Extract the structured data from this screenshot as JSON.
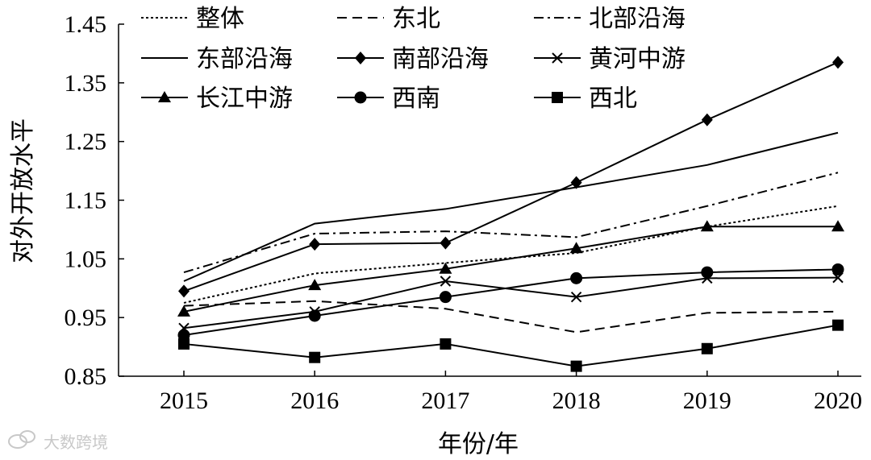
{
  "chart_data": {
    "type": "line",
    "title": "",
    "xlabel": "年份/年",
    "ylabel": "对外开放水平",
    "x": [
      "2015",
      "2016",
      "2017",
      "2018",
      "2019",
      "2020"
    ],
    "ylim": [
      0.85,
      1.45
    ],
    "yticks": [
      "0.85",
      "0.95",
      "1.05",
      "1.15",
      "1.25",
      "1.35",
      "1.45"
    ],
    "grid": false,
    "legend_position": "top",
    "series": [
      {
        "name": "整体",
        "line_style": "dotted",
        "marker": "none",
        "values": [
          0.975,
          1.025,
          1.043,
          1.06,
          1.105,
          1.14
        ]
      },
      {
        "name": "东北",
        "line_style": "dashed",
        "marker": "none",
        "values": [
          0.97,
          0.978,
          0.965,
          0.925,
          0.958,
          0.96
        ]
      },
      {
        "name": "北部沿海",
        "line_style": "dashdot",
        "marker": "none",
        "values": [
          1.027,
          1.093,
          1.097,
          1.087,
          1.14,
          1.197
        ]
      },
      {
        "name": "东部沿海",
        "line_style": "solid",
        "marker": "none",
        "values": [
          1.012,
          1.11,
          1.135,
          1.172,
          1.21,
          1.265
        ]
      },
      {
        "name": "南部沿海",
        "line_style": "solid",
        "marker": "diamond",
        "values": [
          0.995,
          1.075,
          1.077,
          1.18,
          1.287,
          1.385
        ]
      },
      {
        "name": "黄河中游",
        "line_style": "solid",
        "marker": "x",
        "values": [
          0.932,
          0.96,
          1.012,
          0.985,
          1.017,
          1.018
        ]
      },
      {
        "name": "长江中游",
        "line_style": "solid",
        "marker": "triangle",
        "values": [
          0.96,
          1.005,
          1.033,
          1.068,
          1.105,
          1.105
        ]
      },
      {
        "name": "西南",
        "line_style": "solid",
        "marker": "circle",
        "values": [
          0.92,
          0.953,
          0.985,
          1.017,
          1.027,
          1.032
        ]
      },
      {
        "name": "西北",
        "line_style": "solid",
        "marker": "square",
        "values": [
          0.905,
          0.882,
          0.905,
          0.867,
          0.897,
          0.937
        ]
      }
    ]
  },
  "watermark": {
    "text": "大数跨境",
    "icon": "chat-bubble-icon"
  }
}
